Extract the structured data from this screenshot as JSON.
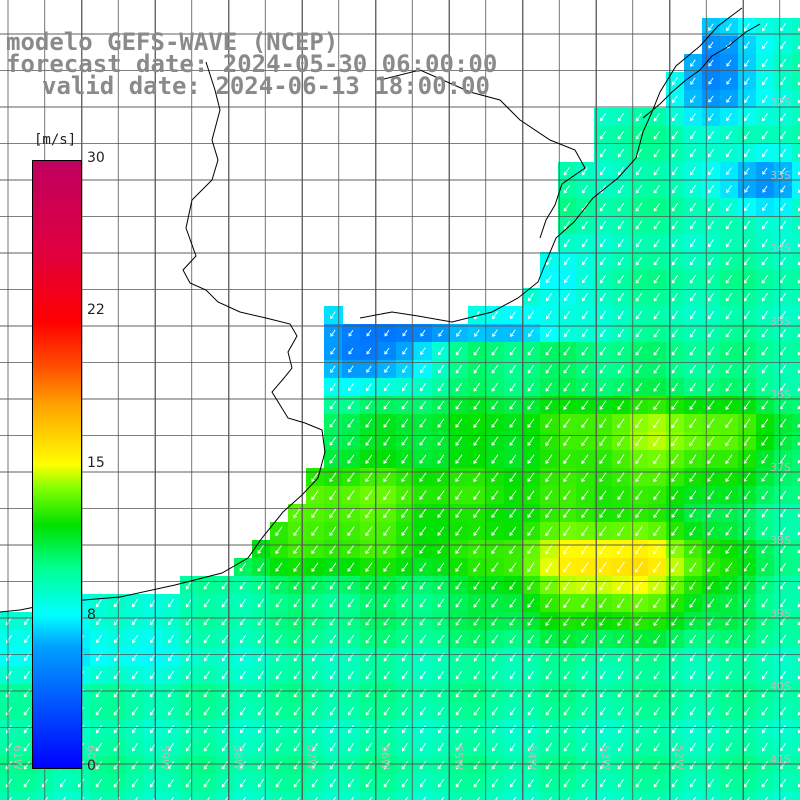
{
  "title": {
    "line1": "modelo GEFS-WAVE (NCEP)",
    "line2": "forecast date: 2024-05-30 06:00:00",
    "line3": "valid date: 2024-06-13 18:00:00"
  },
  "colorbar": {
    "unit": "[m/s]",
    "ticks": [
      {
        "label": "30",
        "value": 30
      },
      {
        "label": "22",
        "value": 22
      },
      {
        "label": "15",
        "value": 15
      },
      {
        "label": "8",
        "value": 8
      },
      {
        "label": "0",
        "value": 0
      }
    ],
    "stops": [
      {
        "value": 0,
        "color": "#0000ff"
      },
      {
        "value": 3,
        "color": "#0050ff"
      },
      {
        "value": 6,
        "color": "#00a0ff"
      },
      {
        "value": 8,
        "color": "#00ffff"
      },
      {
        "value": 10,
        "color": "#00ff90"
      },
      {
        "value": 12,
        "color": "#00e000"
      },
      {
        "value": 14,
        "color": "#80ff00"
      },
      {
        "value": 15,
        "color": "#ffff00"
      },
      {
        "value": 18,
        "color": "#ffa000"
      },
      {
        "value": 20,
        "color": "#ff5000"
      },
      {
        "value": 22,
        "color": "#ff0000"
      },
      {
        "value": 30,
        "color": "#c00060"
      }
    ]
  },
  "map": {
    "lat_labels": [
      "32S",
      "33S",
      "34S",
      "35S",
      "36S",
      "37S",
      "38S",
      "39S",
      "40S",
      "41S"
    ],
    "lon_labels": [
      "61W",
      "60W",
      "59W",
      "58W",
      "57W",
      "56W",
      "55W",
      "54W",
      "53W",
      "52W"
    ],
    "lon_range": [
      -62,
      -51
    ],
    "lat_range": [
      -41.5,
      -31
    ],
    "wind_direction_deg": 235,
    "coastline_color": "#000000",
    "grid_color": "#555555"
  }
}
